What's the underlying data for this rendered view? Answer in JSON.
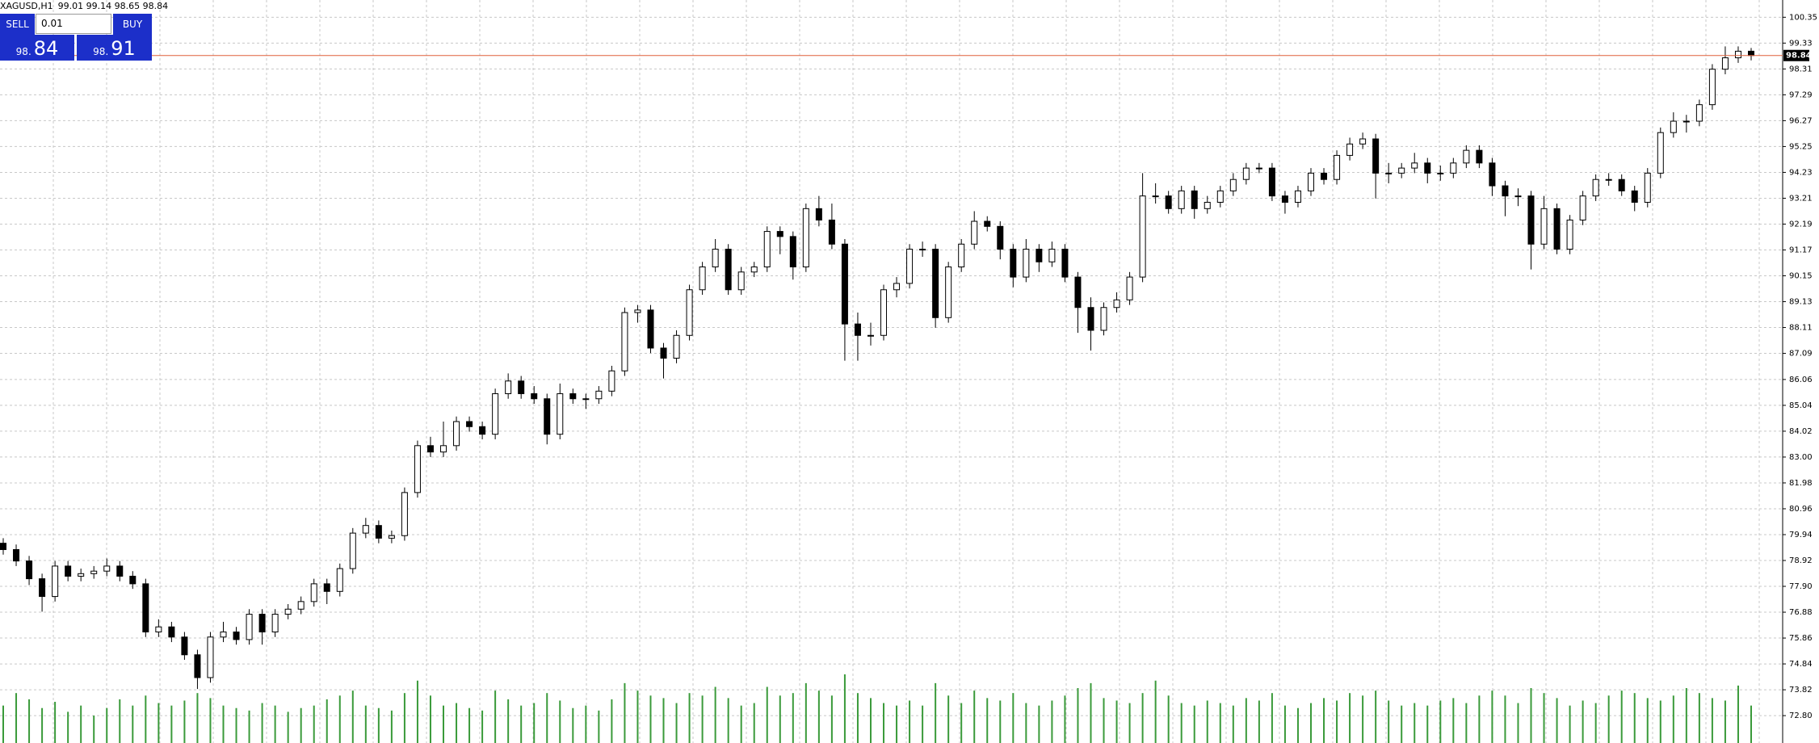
{
  "header": {
    "symbol": "XAGUSD,H1",
    "ohlc": "99.01 99.14 98.65 98.84"
  },
  "trade_panel": {
    "sell": "SELL",
    "lot": "0.01",
    "buy": "BUY",
    "sell_price_big": "98.",
    "sell_price_small": "84",
    "buy_price_big": "98.",
    "buy_price_small": "91"
  },
  "chart_data": {
    "type": "candlestick",
    "open": [
      79.6,
      79.35,
      78.9,
      78.2,
      77.5,
      78.7,
      78.3,
      78.4,
      78.5,
      78.7,
      78.3,
      78.0,
      76.1,
      76.3,
      75.9,
      75.2,
      74.3,
      75.9,
      76.1,
      75.8,
      76.8,
      76.1,
      76.8,
      77.0,
      77.3,
      78.0,
      77.7,
      78.6,
      80.0,
      80.3,
      79.8,
      79.9,
      81.6,
      83.45,
      83.2,
      83.45,
      84.4,
      84.2,
      83.9,
      85.5,
      86.0,
      85.5,
      85.3,
      83.9,
      85.5,
      85.3,
      85.3,
      85.6,
      86.4,
      88.7,
      88.8,
      87.3,
      86.9,
      87.8,
      89.6,
      90.5,
      91.2,
      89.6,
      90.3,
      90.5,
      91.9,
      91.7,
      90.5,
      92.8,
      92.35,
      91.4,
      88.25,
      87.8,
      87.8,
      89.6,
      89.85,
      91.2,
      91.2,
      88.5,
      90.5,
      91.4,
      92.3,
      92.1,
      91.2,
      90.1,
      91.2,
      90.7,
      91.2,
      90.1,
      88.9,
      88.0,
      88.9,
      89.2,
      90.1,
      93.3,
      93.3,
      92.8,
      93.5,
      92.8,
      93.05,
      93.5,
      93.95,
      94.4,
      94.4,
      93.3,
      93.05,
      93.5,
      94.2,
      93.95,
      94.9,
      95.35,
      95.55,
      94.2,
      94.2,
      94.4,
      94.6,
      94.2,
      94.2,
      94.6,
      95.1,
      94.6,
      93.7,
      93.3,
      93.3,
      91.4,
      92.8,
      91.2,
      92.35,
      93.3,
      93.95,
      93.95,
      93.5,
      93.05,
      94.2,
      95.8,
      96.25,
      96.25,
      96.9,
      98.3,
      98.75,
      99.01
    ],
    "high": [
      79.8,
      79.55,
      79.1,
      78.4,
      78.9,
      78.9,
      78.6,
      78.7,
      79.0,
      78.9,
      78.5,
      78.2,
      76.6,
      76.5,
      76.1,
      75.4,
      76.1,
      76.5,
      76.3,
      77.0,
      77.0,
      77.0,
      77.2,
      77.5,
      78.2,
      78.2,
      78.8,
      80.2,
      80.6,
      80.5,
      80.1,
      81.8,
      83.65,
      83.8,
      84.4,
      84.6,
      84.6,
      84.4,
      85.7,
      86.3,
      86.2,
      85.8,
      85.5,
      85.9,
      85.7,
      85.5,
      85.8,
      86.6,
      88.9,
      89.0,
      89.0,
      87.5,
      88.0,
      89.8,
      90.7,
      91.6,
      91.4,
      90.5,
      90.7,
      92.1,
      92.1,
      91.9,
      93.0,
      93.3,
      93.0,
      91.6,
      88.7,
      88.3,
      89.8,
      90.1,
      91.4,
      91.5,
      91.4,
      90.7,
      91.6,
      92.7,
      92.5,
      92.3,
      91.4,
      91.6,
      91.4,
      91.5,
      91.4,
      90.3,
      89.3,
      89.1,
      89.5,
      90.3,
      94.2,
      93.8,
      93.5,
      93.7,
      93.7,
      93.3,
      93.7,
      94.2,
      94.6,
      94.6,
      94.6,
      93.5,
      93.7,
      94.4,
      94.4,
      95.1,
      95.6,
      95.8,
      95.75,
      94.6,
      94.6,
      95.0,
      94.8,
      94.5,
      94.8,
      95.3,
      95.3,
      94.8,
      93.9,
      93.6,
      93.5,
      93.3,
      93.0,
      92.55,
      93.5,
      94.15,
      94.2,
      94.15,
      93.7,
      94.4,
      96.0,
      96.6,
      96.5,
      97.1,
      98.5,
      99.2,
      99.2,
      99.14
    ],
    "low": [
      79.15,
      78.7,
      77.95,
      76.9,
      77.3,
      78.1,
      78.1,
      78.2,
      78.3,
      78.1,
      77.8,
      75.9,
      75.9,
      75.7,
      75.0,
      73.85,
      74.1,
      75.7,
      75.6,
      75.6,
      75.6,
      75.9,
      76.6,
      76.8,
      77.1,
      77.2,
      77.5,
      78.4,
      79.8,
      79.6,
      79.6,
      79.7,
      81.4,
      83.0,
      83.0,
      83.25,
      84.0,
      83.7,
      83.7,
      85.3,
      85.3,
      85.1,
      83.5,
      83.7,
      85.1,
      84.9,
      85.1,
      85.4,
      86.2,
      88.3,
      87.1,
      86.1,
      86.7,
      87.6,
      89.4,
      90.3,
      89.4,
      89.4,
      90.1,
      90.3,
      91.0,
      90.0,
      90.3,
      92.1,
      91.2,
      86.8,
      86.8,
      87.4,
      87.6,
      89.3,
      89.65,
      90.9,
      88.1,
      88.3,
      90.3,
      91.2,
      91.9,
      90.8,
      89.7,
      89.9,
      90.3,
      90.5,
      89.9,
      87.9,
      87.2,
      87.8,
      88.7,
      89.0,
      89.9,
      93.0,
      92.6,
      92.6,
      92.4,
      92.6,
      92.85,
      93.3,
      93.75,
      94.2,
      93.1,
      92.6,
      92.85,
      93.3,
      93.75,
      93.75,
      94.7,
      95.15,
      93.2,
      93.8,
      94.0,
      94.2,
      93.8,
      93.9,
      94.0,
      94.4,
      94.4,
      93.3,
      92.5,
      92.9,
      90.4,
      91.2,
      91.0,
      91.0,
      92.15,
      93.1,
      93.7,
      93.3,
      92.7,
      92.85,
      94.0,
      95.6,
      95.8,
      96.05,
      96.7,
      98.1,
      98.55,
      98.65
    ],
    "close": [
      79.35,
      78.9,
      78.2,
      77.5,
      78.7,
      78.3,
      78.4,
      78.5,
      78.7,
      78.3,
      78.0,
      76.1,
      76.3,
      75.9,
      75.2,
      74.3,
      75.9,
      76.1,
      75.8,
      76.8,
      76.1,
      76.8,
      77.0,
      77.3,
      78.0,
      77.7,
      78.6,
      80.0,
      80.3,
      79.8,
      79.9,
      81.6,
      83.45,
      83.2,
      83.45,
      84.4,
      84.2,
      83.9,
      85.5,
      86.0,
      85.5,
      85.3,
      83.9,
      85.5,
      85.3,
      85.3,
      85.6,
      86.4,
      88.7,
      88.8,
      87.3,
      86.9,
      87.8,
      89.6,
      90.5,
      91.2,
      89.6,
      90.3,
      90.5,
      91.9,
      91.7,
      90.5,
      92.8,
      92.35,
      91.4,
      88.25,
      87.8,
      87.8,
      89.6,
      89.85,
      91.2,
      91.2,
      88.5,
      90.5,
      91.4,
      92.3,
      92.1,
      91.2,
      90.1,
      91.2,
      90.7,
      91.2,
      90.1,
      88.9,
      88.0,
      88.9,
      89.2,
      90.1,
      93.3,
      93.3,
      92.8,
      93.5,
      92.8,
      93.05,
      93.5,
      93.95,
      94.4,
      94.4,
      93.3,
      93.05,
      93.5,
      94.2,
      93.95,
      94.9,
      95.35,
      95.55,
      94.2,
      94.2,
      94.4,
      94.6,
      94.2,
      94.2,
      94.6,
      95.1,
      94.6,
      93.7,
      93.3,
      93.3,
      91.4,
      92.8,
      91.2,
      92.35,
      93.3,
      93.95,
      93.95,
      93.5,
      93.05,
      94.2,
      95.8,
      96.25,
      96.25,
      96.9,
      98.3,
      98.75,
      99.01,
      98.84
    ],
    "volume": [
      30,
      40,
      35,
      28,
      33,
      25,
      30,
      22,
      28,
      35,
      30,
      38,
      32,
      30,
      34,
      40,
      36,
      30,
      28,
      26,
      32,
      30,
      25,
      28,
      30,
      35,
      38,
      42,
      30,
      28,
      26,
      40,
      50,
      38,
      30,
      32,
      28,
      26,
      42,
      35,
      30,
      32,
      40,
      34,
      28,
      30,
      26,
      35,
      48,
      42,
      38,
      36,
      32,
      40,
      38,
      45,
      36,
      30,
      32,
      45,
      38,
      40,
      48,
      42,
      38,
      55,
      40,
      36,
      32,
      30,
      34,
      30,
      48,
      38,
      32,
      42,
      36,
      34,
      40,
      32,
      30,
      34,
      38,
      44,
      48,
      36,
      34,
      32,
      40,
      50,
      38,
      32,
      30,
      34,
      32,
      30,
      36,
      34,
      40,
      30,
      28,
      32,
      36,
      34,
      40,
      38,
      42,
      34,
      30,
      32,
      30,
      34,
      36,
      32,
      38,
      42,
      38,
      32,
      44,
      40,
      36,
      30,
      34,
      32,
      38,
      42,
      40,
      36,
      34,
      38,
      44,
      40,
      36,
      34,
      46,
      30
    ],
    "up_color": "#ffffff",
    "down_color": "#000000",
    "volume_color": "#3a9a3a",
    "price_line_color": "#e0603c",
    "ylim": [
      71.72,
      101.03
    ],
    "yticks": [
      100.35,
      99.33,
      98.31,
      97.29,
      96.27,
      95.25,
      94.23,
      93.21,
      92.19,
      91.17,
      90.15,
      89.13,
      88.11,
      87.09,
      86.06,
      85.04,
      84.02,
      {
        "value": 83,
        "label": "83.00"
      },
      81.98,
      80.96,
      79.94,
      78.92,
      {
        "value": 77.9,
        "label": "77.90"
      },
      76.88,
      75.86,
      74.84,
      73.82,
      {
        "value": 72.8,
        "label": "72.80"
      }
    ],
    "grid": true
  }
}
